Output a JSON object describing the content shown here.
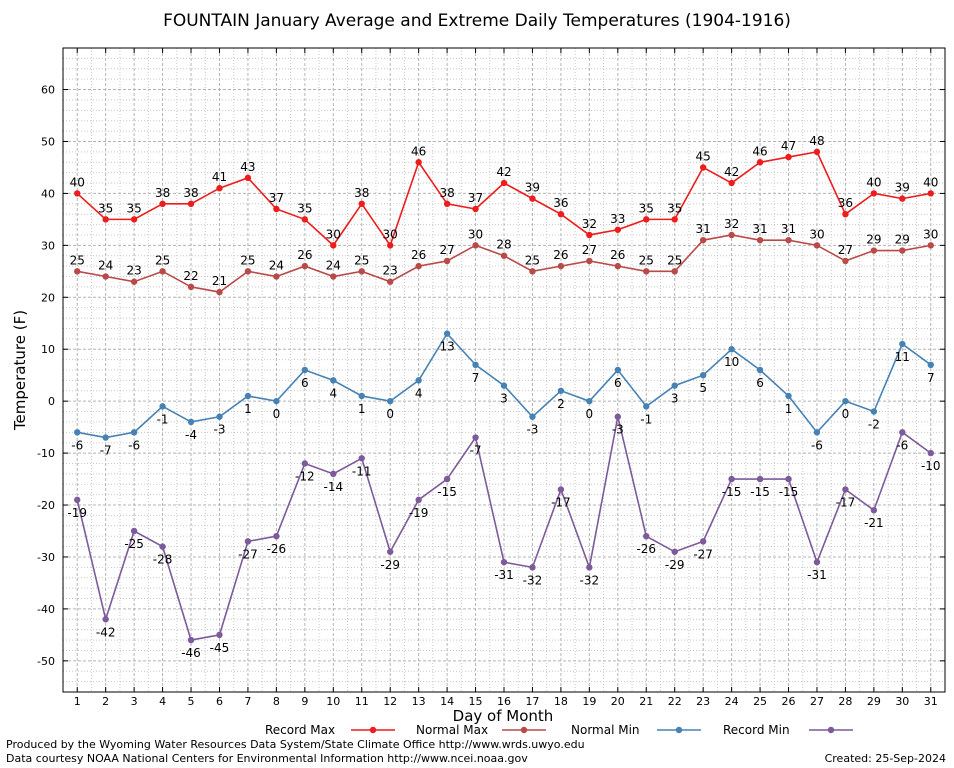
{
  "chart_data": {
    "type": "line",
    "title": "FOUNTAIN January Average and Extreme Daily Temperatures (1904-1916)",
    "xlabel": "Day of Month",
    "ylabel": "Temperature (F)",
    "x": [
      1,
      2,
      3,
      4,
      5,
      6,
      7,
      8,
      9,
      10,
      11,
      12,
      13,
      14,
      15,
      16,
      17,
      18,
      19,
      20,
      21,
      22,
      23,
      24,
      25,
      26,
      27,
      28,
      29,
      30,
      31
    ],
    "x_tick_labels": [
      "1",
      "2",
      "3",
      "4",
      "5",
      "6",
      "7",
      "8",
      "9",
      "10",
      "11",
      "12",
      "13",
      "14",
      "15",
      "16",
      "17",
      "18",
      "19",
      "20",
      "21",
      "22",
      "23",
      "24",
      "25",
      "26",
      "27",
      "28",
      "29",
      "30",
      "31"
    ],
    "xlim": [
      0.5,
      31.5
    ],
    "ylim": [
      -56,
      68
    ],
    "y_ticks": [
      -50,
      -40,
      -30,
      -20,
      -10,
      0,
      10,
      20,
      30,
      40,
      50,
      60
    ],
    "y_tick_labels": [
      "-50",
      "-40",
      "-30",
      "-20",
      "-10",
      "0",
      "10",
      "20",
      "30",
      "40",
      "50",
      "60"
    ],
    "grid": true,
    "legend_position": "bottom",
    "series": [
      {
        "name": "Record Max",
        "color": "#ee1c1c",
        "label_position": "above",
        "values": [
          40,
          35,
          35,
          38,
          38,
          41,
          43,
          37,
          35,
          30,
          38,
          30,
          46,
          38,
          37,
          42,
          39,
          36,
          32,
          33,
          35,
          35,
          45,
          42,
          46,
          47,
          48,
          36,
          40,
          39,
          40
        ],
        "labels": [
          "40",
          "35",
          "35",
          "38",
          "38",
          "41",
          "43",
          "37",
          "35",
          "30",
          "38",
          "30",
          "46",
          "38",
          "37",
          "42",
          "39",
          "36",
          "32",
          "33",
          "35",
          "35",
          "45",
          "42",
          "46",
          "47",
          "48",
          "36",
          "40",
          "39",
          "40"
        ]
      },
      {
        "name": "Normal Max",
        "color": "#b94a48",
        "label_position": "above",
        "values": [
          25,
          24,
          23,
          25,
          22,
          21,
          25,
          24,
          26,
          24,
          25,
          23,
          26,
          27,
          30,
          28,
          25,
          26,
          27,
          26,
          25,
          25,
          31,
          32,
          31,
          31,
          30,
          27,
          29,
          29,
          30
        ],
        "labels": [
          "25",
          "24",
          "23",
          "25",
          "22",
          "21",
          "25",
          "24",
          "26",
          "24",
          "25",
          "23",
          "26",
          "27",
          "30",
          "28",
          "25",
          "26",
          "27",
          "26",
          "25",
          "25",
          "31",
          "32",
          "31",
          "31",
          "30",
          "27",
          "29",
          "29",
          "30"
        ]
      },
      {
        "name": "Normal Min",
        "color": "#4682b4",
        "label_position": "below",
        "values": [
          -6,
          -7,
          -6,
          -1,
          -4,
          -3,
          1,
          0,
          6,
          4,
          1,
          0,
          4,
          13,
          7,
          3,
          -3,
          2,
          0,
          6,
          -1,
          3,
          5,
          10,
          6,
          1,
          -6,
          0,
          -2,
          11,
          7
        ],
        "labels": [
          "-6",
          "-7",
          "-6",
          "-1",
          "-4",
          "-3",
          "1",
          "0",
          "6",
          "4",
          "1",
          "0",
          "4",
          "13",
          "7",
          "3",
          "-3",
          "2",
          "0",
          "6",
          "-1",
          "3",
          "5",
          "10",
          "6",
          "1",
          "-6",
          "0",
          "-2",
          "11",
          "7"
        ]
      },
      {
        "name": "Record Min",
        "color": "#7d5a9b",
        "label_position": "below",
        "values": [
          -19,
          -42,
          -25,
          -28,
          -46,
          -45,
          -27,
          -26,
          -12,
          -14,
          -11,
          -29,
          -19,
          -15,
          -7,
          -31,
          -32,
          -17,
          -32,
          -3,
          -26,
          -29,
          -27,
          -15,
          -15,
          -15,
          -31,
          -17,
          -21,
          -6,
          -10
        ],
        "labels": [
          "-19",
          "-42",
          "-25",
          "-28",
          "-46",
          "-45",
          "-27",
          "-26",
          "-12",
          "-14",
          "-11",
          "-29",
          "-19",
          "-15",
          "-7",
          "-31",
          "-32",
          "-17",
          "-32",
          "-3",
          "-26",
          "-29",
          "-27",
          "-15",
          "-15",
          "-15",
          "-31",
          "-17",
          "-21",
          "-6",
          "-10"
        ]
      }
    ]
  },
  "footer": {
    "produced_by": "Produced by the Wyoming Water Resources Data System/State Climate Office http://www.wrds.uwyo.edu",
    "data_courtesy": "Data courtesy NOAA National Centers for Environmental Information http://www.ncei.noaa.gov",
    "created": "Created:  25-Sep-2024"
  }
}
